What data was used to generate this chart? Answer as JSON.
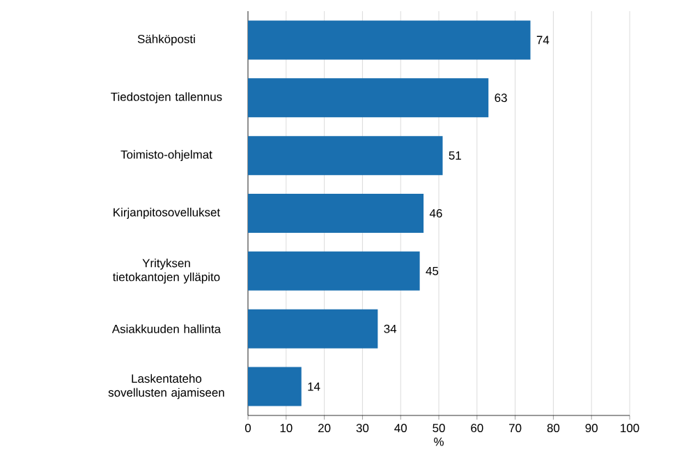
{
  "chart_data": {
    "type": "bar",
    "orientation": "horizontal",
    "xlabel": "%",
    "categories": [
      "Sähköposti",
      "Tiedostojen tallennus",
      "Toimisto-ohjelmat",
      "Kirjanpitosovellukset",
      "Yrityksen tietokantojen ylläpito",
      "Asiakkuuden hallinta",
      "Laskentateho sovellusten ajamiseen"
    ],
    "values": [
      74,
      63,
      51,
      46,
      45,
      34,
      14
    ],
    "color": "#1a6faf",
    "xlim": [
      0,
      100
    ],
    "xticks": [
      0,
      10,
      20,
      30,
      40,
      50,
      60,
      70,
      80,
      90,
      100
    ],
    "grid": "x",
    "data_labels": true
  }
}
